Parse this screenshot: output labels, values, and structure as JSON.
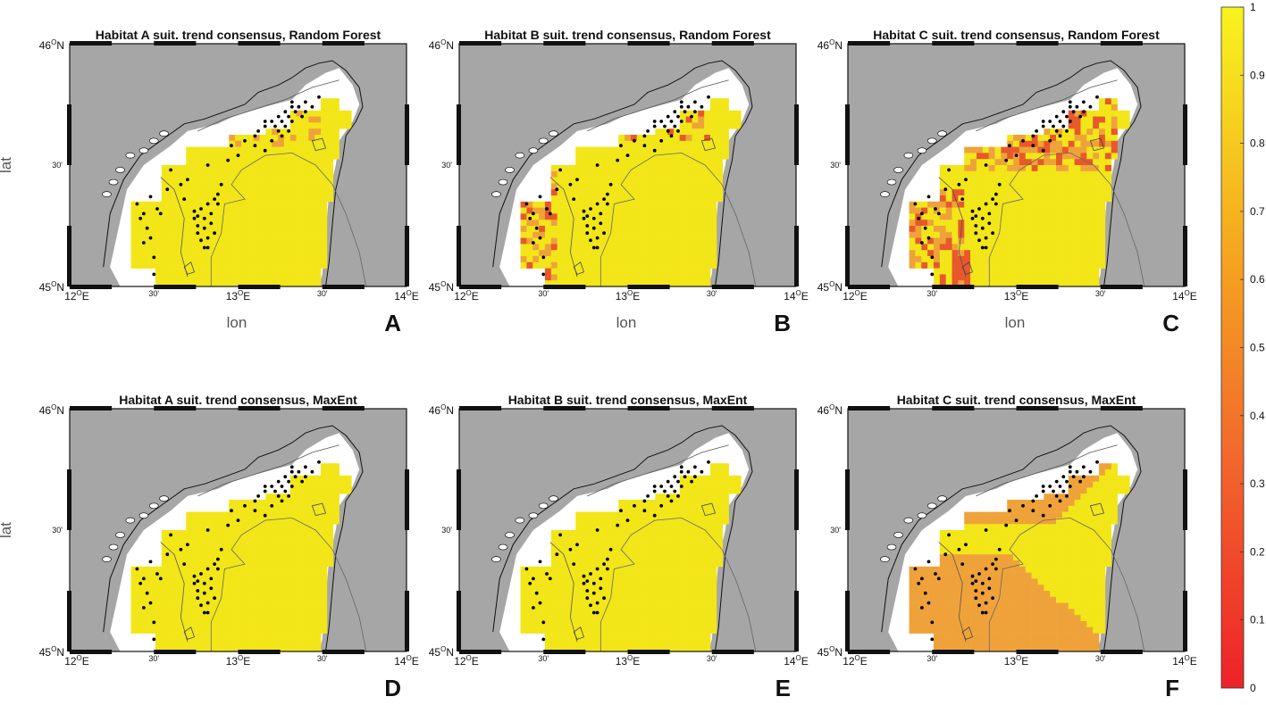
{
  "panels": [
    {
      "letter": "A",
      "title": "Habitat A suit. trend consensus, Random Forest",
      "habitat": "A",
      "model": "Random Forest",
      "show_xlabel": true
    },
    {
      "letter": "B",
      "title": "Habitat B suit. trend consensus, Random Forest",
      "habitat": "B",
      "model": "Random Forest",
      "show_xlabel": true
    },
    {
      "letter": "C",
      "title": "Habitat C suit. trend consensus, Random Forest",
      "habitat": "C",
      "model": "Random Forest",
      "show_xlabel": true
    },
    {
      "letter": "D",
      "title": "Habitat A suit. trend consensus, MaxEnt",
      "habitat": "A",
      "model": "MaxEnt",
      "show_xlabel": false
    },
    {
      "letter": "E",
      "title": "Habitat B suit. trend consensus, MaxEnt",
      "habitat": "B",
      "model": "MaxEnt",
      "show_xlabel": false
    },
    {
      "letter": "F",
      "title": "Habitat C suit. trend consensus, MaxEnt",
      "habitat": "C",
      "model": "MaxEnt",
      "show_xlabel": false
    }
  ],
  "axes": {
    "x_label": "lon",
    "y_label": "lat",
    "lat_ticks": {
      "top": "46",
      "mid": "30'",
      "bottom": "45"
    },
    "lat_suffix": "N",
    "lon_ticks": [
      "12",
      "30'",
      "13",
      "30'",
      "14"
    ],
    "lon_suffix": "E",
    "degree_mark": "O"
  },
  "colorbar": {
    "ticks": [
      "1",
      "0.9",
      "0.8",
      "0.7",
      "0.6",
      "0.5",
      "0.4",
      "0.3",
      "0.2",
      "0.1",
      "0"
    ],
    "range": [
      0,
      1
    ],
    "colors": {
      "high": "#f4e81f",
      "mid": "#f5a623",
      "low": "#ee2a2a"
    }
  },
  "colors": {
    "land": "#a6a6a6",
    "sea_background": "#ffffff",
    "suitability_high": "#f2e619",
    "suitability_medium": "#f0a23a",
    "suitability_low": "#e8582a",
    "station_dots": "#000000"
  }
}
